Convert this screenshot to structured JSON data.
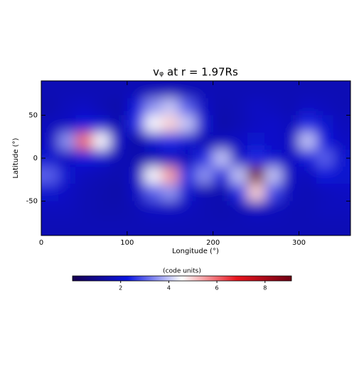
{
  "chart_data": {
    "type": "heatmap",
    "title": "vᵩ at r = 1.97Rs",
    "x_label": "Longitude (°)",
    "y_label": "Latitude (°)",
    "xlim": [
      0,
      360
    ],
    "ylim": [
      -90,
      90
    ],
    "xticks": [
      0,
      100,
      200,
      300
    ],
    "yticks": [
      -50,
      0,
      50
    ],
    "x": [
      10,
      30,
      50,
      70,
      90,
      110,
      130,
      150,
      170,
      190,
      210,
      230,
      250,
      270,
      290,
      310,
      330,
      350
    ],
    "y": [
      80,
      60,
      40,
      20,
      0,
      -20,
      -40,
      -60,
      -80
    ],
    "z": [
      [
        1.6,
        1.6,
        1.6,
        1.6,
        1.6,
        1.6,
        1.6,
        1.6,
        1.6,
        1.6,
        1.6,
        1.6,
        1.6,
        1.6,
        1.6,
        1.6,
        1.6,
        1.6
      ],
      [
        1.5,
        1.7,
        1.8,
        1.6,
        1.4,
        2.2,
        3.5,
        4,
        3,
        1.8,
        1.5,
        1.6,
        1.8,
        1.7,
        1.6,
        1.8,
        1.7,
        1.6
      ],
      [
        1.7,
        1.8,
        2.2,
        2,
        1.5,
        2.5,
        4.5,
        5,
        4,
        2,
        1.4,
        1.6,
        1.8,
        1.9,
        1.7,
        2.5,
        2,
        1.7
      ],
      [
        1.8,
        3.5,
        6,
        4.5,
        1.8,
        1.4,
        2,
        2.5,
        2,
        1.6,
        1.7,
        1.8,
        2,
        1.9,
        1.8,
        4,
        2.2,
        1.8
      ],
      [
        2,
        1.8,
        2.2,
        2,
        1.6,
        1.5,
        1.6,
        1.8,
        1.7,
        2.5,
        4,
        1.8,
        2.5,
        2,
        1.8,
        2.2,
        3,
        2
      ],
      [
        3,
        2,
        1.7,
        1.6,
        1.5,
        1.8,
        4.5,
        5.5,
        2.5,
        3.5,
        2.2,
        4,
        9,
        4,
        1.8,
        1.7,
        2.2,
        2
      ],
      [
        2,
        1.8,
        1.6,
        1.5,
        1.4,
        1.8,
        3,
        3.5,
        2,
        1.6,
        1.5,
        2.5,
        5,
        2.8,
        1.7,
        1.6,
        1.7,
        1.8
      ],
      [
        1.7,
        1.7,
        1.6,
        1.5,
        1.5,
        1.6,
        1.8,
        1.8,
        1.7,
        1.6,
        1.5,
        1.6,
        1.8,
        1.7,
        1.6,
        1.6,
        1.7,
        1.7
      ],
      [
        1.6,
        1.6,
        1.6,
        1.6,
        1.6,
        1.6,
        1.6,
        1.6,
        1.6,
        1.6,
        1.6,
        1.6,
        1.6,
        1.6,
        1.6,
        1.6,
        1.6,
        1.6
      ]
    ],
    "colormap": [
      "#160050",
      "#0a14e0",
      "#ffffff",
      "#e8141e",
      "#6e0014"
    ],
    "colorbar_label": "(code units)",
    "colorbar_lim": [
      0,
      9.1
    ],
    "colorbar_ticks": [
      2,
      4,
      6,
      8
    ]
  }
}
